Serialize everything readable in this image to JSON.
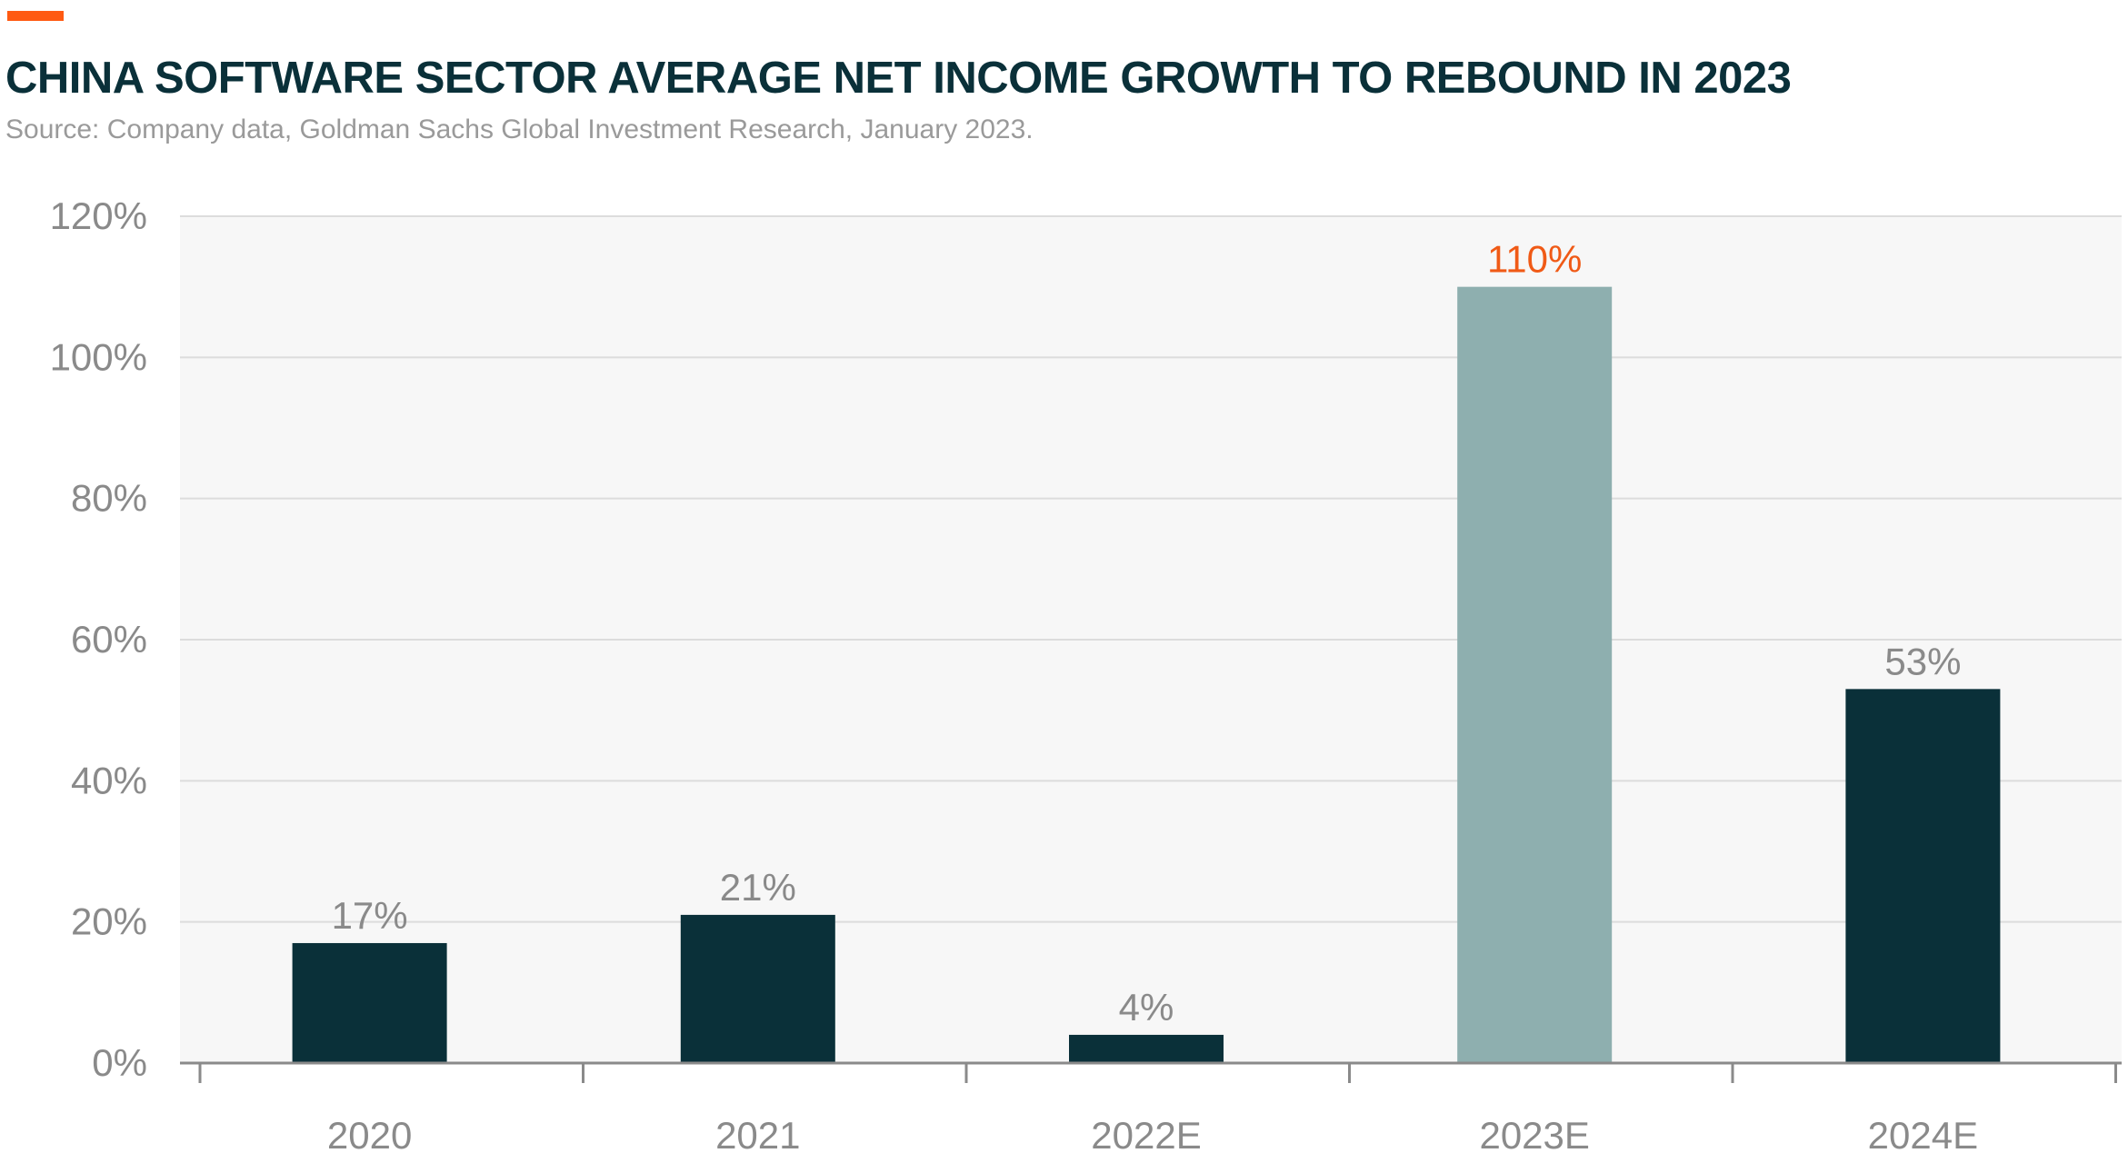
{
  "header": {
    "title": "CHINA SOFTWARE SECTOR AVERAGE NET INCOME GROWTH TO REBOUND IN 2023",
    "subtitle": "Source: Company data, Goldman Sachs Global Investment Research, January 2023."
  },
  "colors": {
    "accent": "#ff5a12",
    "title": "#0a3039",
    "subtitle": "#9a9a9a",
    "bar_primary": "#0a3039",
    "bar_highlight": "#8eafaf",
    "label_default": "#8a8a8a",
    "label_highlight": "#f05a16",
    "plot_bg": "#f7f7f7",
    "grid": "#dcdcdc",
    "axis": "#8a8a8a",
    "tick_text": "#8a8a8a"
  },
  "chart_data": {
    "type": "bar",
    "title": "CHINA SOFTWARE SECTOR AVERAGE NET INCOME GROWTH TO REBOUND IN 2023",
    "categories": [
      "2020",
      "2021",
      "2022E",
      "2023E",
      "2024E"
    ],
    "values": [
      17,
      21,
      4,
      110,
      53
    ],
    "data_labels": [
      "17%",
      "21%",
      "4%",
      "110%",
      "53%"
    ],
    "highlight_index": 3,
    "ylim": [
      0,
      120
    ],
    "yticks": [
      0,
      20,
      40,
      60,
      80,
      100,
      120
    ],
    "ytick_labels": [
      "0%",
      "20%",
      "40%",
      "60%",
      "80%",
      "100%",
      "120%"
    ],
    "xlabel": "",
    "ylabel": "",
    "grid": true,
    "legend": "none"
  }
}
